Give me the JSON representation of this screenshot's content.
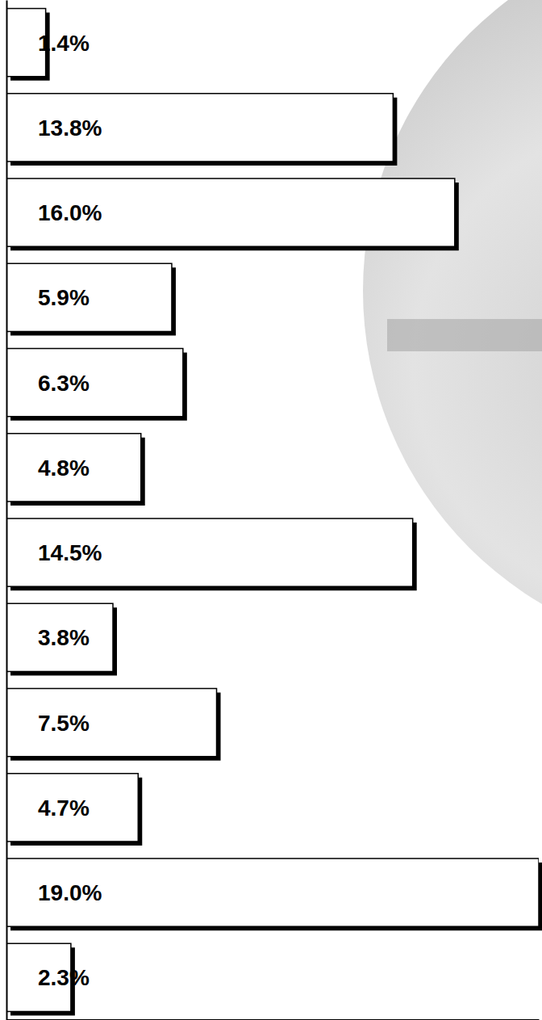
{
  "chart_data": {
    "type": "bar",
    "orientation": "horizontal",
    "categories": [
      null,
      null,
      null,
      null,
      null,
      null,
      null,
      null,
      null,
      null,
      null,
      null
    ],
    "values": [
      1.4,
      13.8,
      16.0,
      5.9,
      6.3,
      4.8,
      14.5,
      3.8,
      7.5,
      4.7,
      19.0,
      2.3
    ],
    "value_labels": [
      "1.4%",
      "13.8%",
      "16.0%",
      "5.9%",
      "6.3%",
      "4.8%",
      "14.5%",
      "3.8%",
      "7.5%",
      "4.7%",
      "19.0%",
      "2.3%"
    ],
    "data_labels": true,
    "color": "#ffffff",
    "xlim": [
      0,
      19.0
    ],
    "xticks": [],
    "grid": false,
    "tick_labels": false
  }
}
